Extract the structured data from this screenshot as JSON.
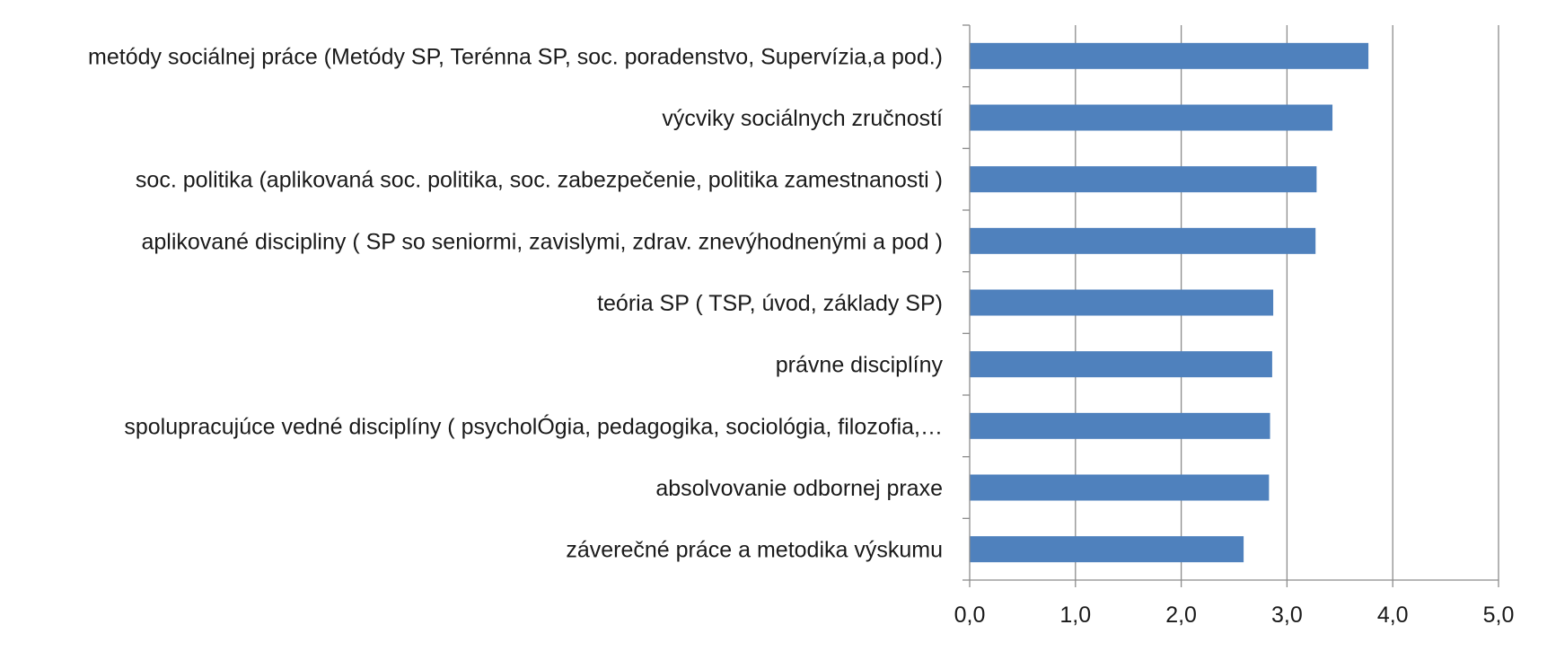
{
  "chart_data": {
    "type": "bar",
    "orientation": "horizontal",
    "title": "",
    "xlabel": "",
    "ylabel": "",
    "categories": [
      "metódy sociálnej práce (Metódy SP, Terénna SP, soc. poradenstvo, Supervízia,a pod.)",
      "výcviky sociálnych zručností",
      "soc. politika (aplikovaná soc. politika, soc. zabezpečenie, politika zamestnanosti )",
      "aplikované discipliny ( SP so seniormi, zavislymi, zdrav. znevýhodnenými a pod )",
      "teória SP ( TSP, úvod, základy SP)",
      "právne disciplíny",
      "spolupracujúce vedné disciplíny ( psycholÓgia, pedagogika, sociológia, filozofia,…",
      "absolvovanie odbornej praxe",
      "záverečné práce a metodika výskumu"
    ],
    "values": [
      3.77,
      3.43,
      3.28,
      3.27,
      2.87,
      2.86,
      2.84,
      2.83,
      2.59
    ],
    "xlim": [
      0,
      5
    ],
    "ticks": [
      "0,0",
      "1,0",
      "2,0",
      "3,0",
      "4,0",
      "5,0"
    ],
    "grid": "vertical",
    "legend": "none",
    "bar_color": "#4f81bd",
    "grid_color": "#8c8c8c"
  }
}
